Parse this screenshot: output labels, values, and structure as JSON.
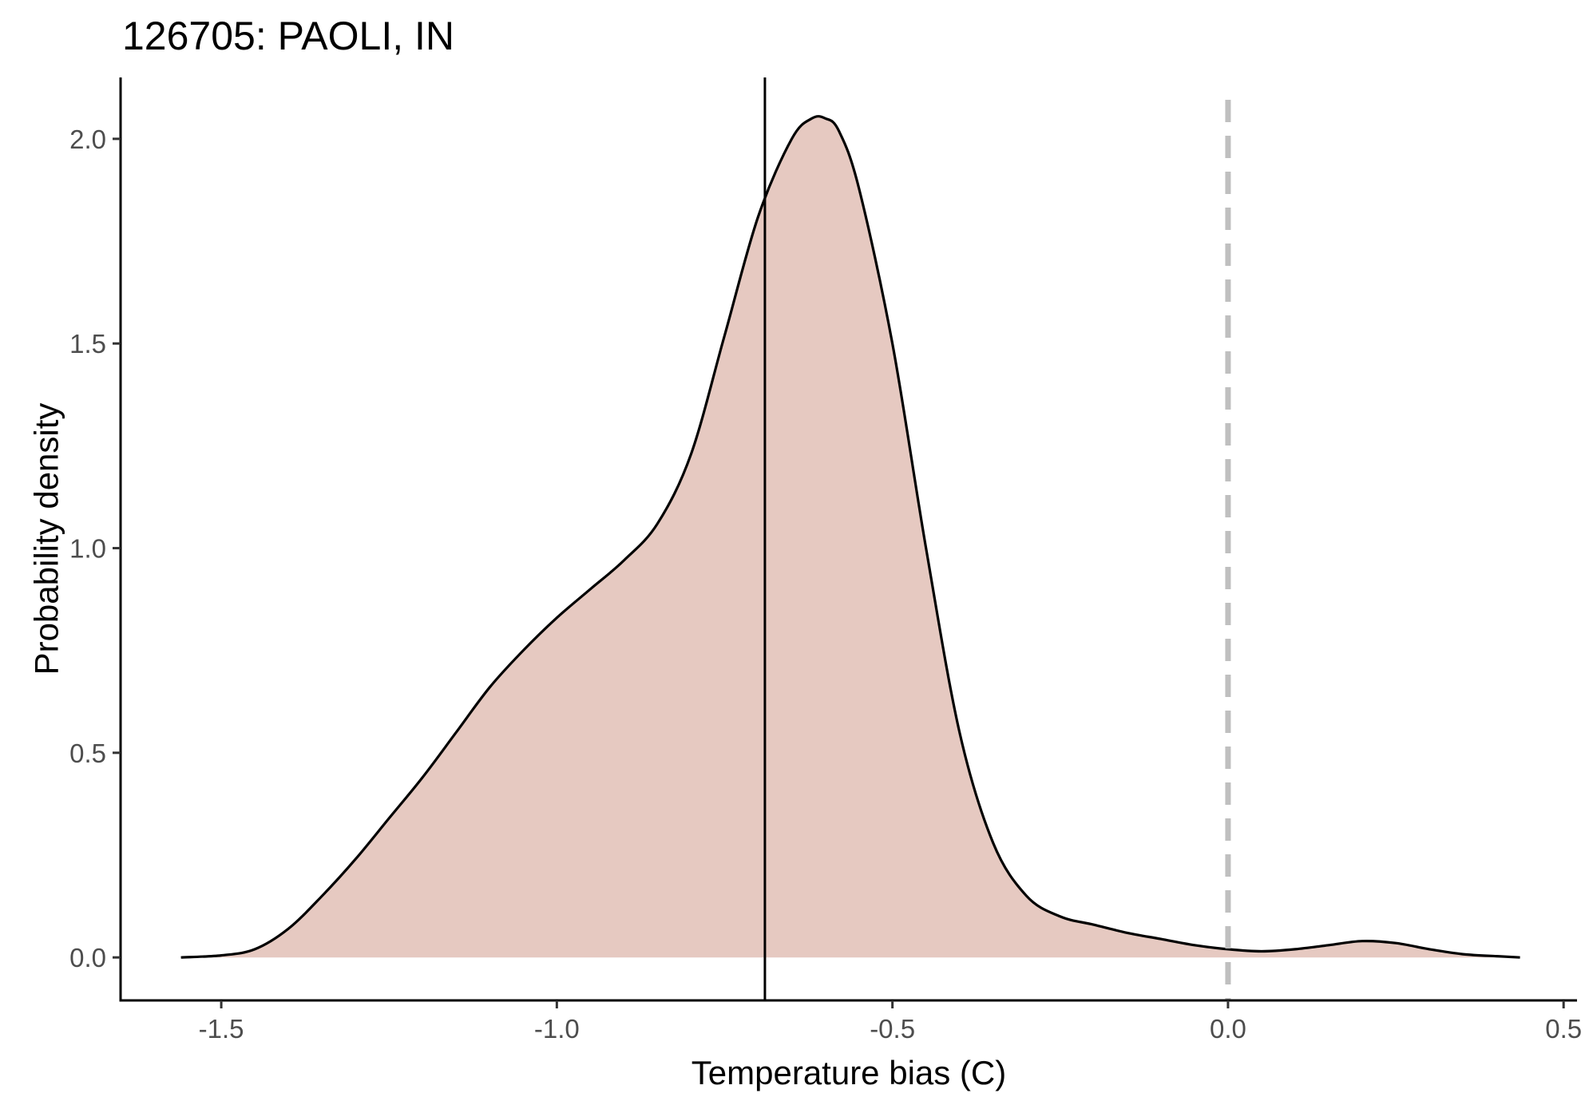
{
  "chart_data": {
    "type": "area",
    "title": "126705: PAOLI, IN",
    "xlabel": "Temperature bias (C)",
    "ylabel": "Probability density",
    "xlim": [
      -1.65,
      0.52
    ],
    "ylim": [
      -0.105,
      2.15
    ],
    "x_ticks": [
      -1.5,
      -1.0,
      -0.5,
      0.0,
      0.5
    ],
    "x_tick_labels": [
      "-1.5",
      "-1.0",
      "-0.5",
      "0.0",
      "0.5"
    ],
    "y_ticks": [
      0.0,
      0.5,
      1.0,
      1.5,
      2.0
    ],
    "y_tick_labels": [
      "0.0",
      "0.5",
      "1.0",
      "1.5",
      "2.0"
    ],
    "grid": false,
    "legend": "none",
    "colors": {
      "fill": "#e6c9c1",
      "line": "#000000",
      "reference": "#bfbfbf"
    },
    "series": [
      {
        "x": [
          -1.56,
          -1.5,
          -1.45,
          -1.4,
          -1.35,
          -1.3,
          -1.25,
          -1.2,
          -1.15,
          -1.1,
          -1.05,
          -1.0,
          -0.95,
          -0.9,
          -0.85,
          -0.8,
          -0.75,
          -0.7,
          -0.65,
          -0.62,
          -0.6,
          -0.58,
          -0.55,
          -0.5,
          -0.45,
          -0.4,
          -0.35,
          -0.3,
          -0.25,
          -0.2,
          -0.15,
          -0.1,
          -0.05,
          0.0,
          0.05,
          0.1,
          0.15,
          0.2,
          0.25,
          0.3,
          0.35,
          0.4,
          0.435
        ],
        "y": [
          0.0,
          0.005,
          0.02,
          0.07,
          0.15,
          0.24,
          0.34,
          0.44,
          0.55,
          0.66,
          0.75,
          0.83,
          0.9,
          0.97,
          1.06,
          1.23,
          1.52,
          1.81,
          2.0,
          2.05,
          2.05,
          2.02,
          1.88,
          1.5,
          1.0,
          0.55,
          0.28,
          0.15,
          0.1,
          0.08,
          0.06,
          0.045,
          0.03,
          0.02,
          0.015,
          0.02,
          0.03,
          0.04,
          0.035,
          0.02,
          0.008,
          0.003,
          0.0
        ]
      }
    ],
    "reference_lines": [
      {
        "orientation": "vertical",
        "x": -0.69,
        "style": "solid"
      },
      {
        "orientation": "vertical",
        "x": 0.0,
        "style": "dashed"
      }
    ]
  }
}
